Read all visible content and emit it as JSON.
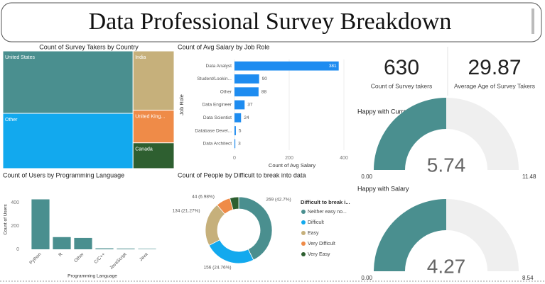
{
  "title": "Data Professional Survey Breakdown",
  "chart_data": [
    {
      "type": "treemap",
      "title": "Count of Survey Takers by Country",
      "categories": [
        "United States",
        "Other",
        "India",
        "United King...",
        "Canada"
      ],
      "values": [
        254,
        225,
        76,
        42,
        33
      ],
      "colors": [
        "#4a8f8f",
        "#12a9ee",
        "#c6b07b",
        "#ef8b48",
        "#2e5f30"
      ]
    },
    {
      "type": "hbar",
      "title": "Count of Avg Salary by Job Role",
      "categories": [
        "Data Analyst",
        "Student/Lookin...",
        "Other",
        "Data Engineer",
        "Data Scientist",
        "Database Devel...",
        "Data Architect"
      ],
      "values": [
        381,
        90,
        88,
        37,
        24,
        5,
        3
      ],
      "color": "#1e8cf0",
      "xlim": [
        0,
        400
      ],
      "xticks": [
        0,
        200,
        400
      ],
      "x_label": "Count of Avg Salary",
      "y_label": "Job Role"
    },
    {
      "type": "card",
      "value": 630,
      "label": "Count of Survey takers"
    },
    {
      "type": "card",
      "value": 29.87,
      "label": "Average Age of Survey Takers"
    },
    {
      "type": "gauge",
      "title": "Happy with Current Role",
      "value": 5.74,
      "min": {
        "value": 0,
        "label": "0.00"
      },
      "max": 11.48,
      "color": "#4a8f8f",
      "track_color": "#efefef"
    },
    {
      "type": "gauge",
      "title": "Happy with Salary",
      "value": 4.27,
      "min": {
        "value": 0,
        "label": "0.00"
      },
      "max": 8.54,
      "color": "#4a8f8f",
      "track_color": "#efefef"
    },
    {
      "type": "bar",
      "title": "Count of Users by Programming Language",
      "categories": [
        "Python",
        "R",
        "Other",
        "C/C++",
        "JavaScript",
        "Java"
      ],
      "values": [
        430,
        105,
        98,
        8,
        6,
        4
      ],
      "color": "#4a8f8f",
      "ylim": [
        0,
        500
      ],
      "yticks": [
        0,
        200,
        400
      ],
      "x_label": "Programming Language",
      "y_label": "Count of Users"
    },
    {
      "type": "donut",
      "title": "Count of People by Difficult to break into data",
      "legend_title": "Difficult to break i...",
      "categories": [
        "Neither easy no...",
        "Difficult",
        "Easy",
        "Very Difficult",
        "Very Easy"
      ],
      "values": [
        269,
        156,
        134,
        44,
        27
      ],
      "value_labels": [
        "269 (42.7%)",
        "156 (24.76%)",
        "134 (21.27%)",
        "44 (6.98%)",
        null
      ],
      "colors": [
        "#4a8f8f",
        "#12a9ee",
        "#c6b07b",
        "#ef8b48",
        "#2e5f30"
      ]
    }
  ]
}
